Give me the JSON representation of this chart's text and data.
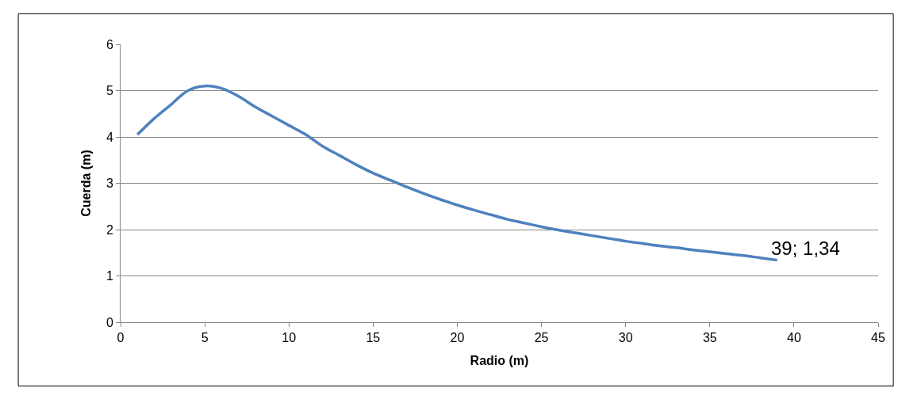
{
  "chart_data": {
    "type": "line",
    "xlabel": "Radio (m)",
    "ylabel": "Cuerda (m)",
    "x": [
      1,
      2,
      3,
      4,
      5,
      6,
      7,
      8,
      9,
      10,
      11,
      12,
      13,
      14,
      15,
      16,
      17,
      18,
      19,
      20,
      21,
      22,
      23,
      24,
      25,
      26,
      27,
      28,
      29,
      30,
      31,
      32,
      33,
      34,
      35,
      36,
      37,
      38,
      39
    ],
    "series": [
      {
        "color": "#4f81bd",
        "values": [
          4.05,
          4.4,
          4.7,
          5.0,
          5.1,
          5.05,
          4.88,
          4.65,
          4.45,
          4.25,
          4.05,
          3.8,
          3.6,
          3.4,
          3.22,
          3.07,
          2.92,
          2.78,
          2.65,
          2.53,
          2.42,
          2.32,
          2.22,
          2.14,
          2.06,
          1.99,
          1.93,
          1.87,
          1.81,
          1.75,
          1.7,
          1.65,
          1.61,
          1.56,
          1.52,
          1.48,
          1.44,
          1.39,
          1.34
        ]
      }
    ],
    "xlim": [
      0,
      45
    ],
    "xticks": [
      0,
      5,
      10,
      15,
      20,
      25,
      30,
      35,
      40,
      45
    ],
    "ylim": [
      0,
      6
    ],
    "yticks": [
      0,
      1,
      2,
      3,
      4,
      5,
      6
    ],
    "grid": "y",
    "legend": false,
    "marker": "none",
    "line_style": "solid",
    "annotations": [
      {
        "text": "39; 1,34",
        "x": 39,
        "y": 1.34
      }
    ]
  }
}
